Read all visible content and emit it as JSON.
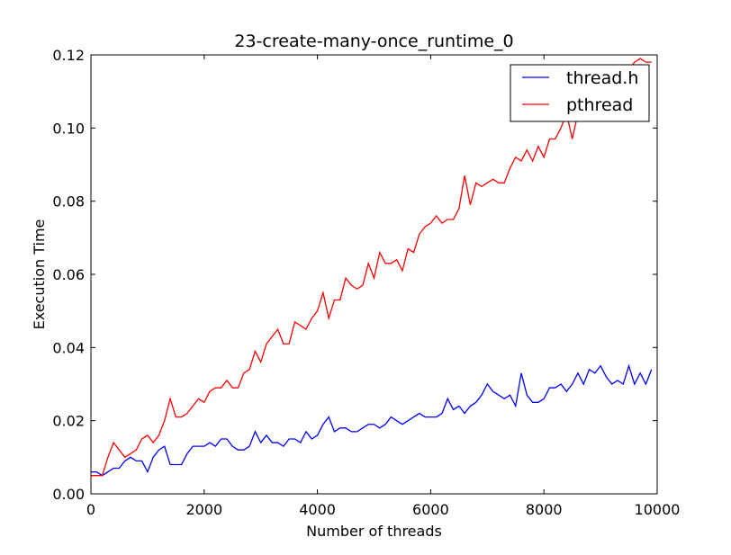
{
  "chart_data": {
    "type": "line",
    "title": "23-create-many-once_runtime_0",
    "xlabel": "Number of threads",
    "ylabel": "Execution Time",
    "xlim": [
      0,
      10000
    ],
    "ylim": [
      0,
      0.12
    ],
    "xticks": [
      0,
      2000,
      4000,
      6000,
      8000,
      10000
    ],
    "xtick_labels": [
      "0",
      "2000",
      "4000",
      "6000",
      "8000",
      "10000"
    ],
    "yticks": [
      0,
      0.02,
      0.04,
      0.06,
      0.08,
      0.1,
      0.12
    ],
    "ytick_labels": [
      "0.00",
      "0.02",
      "0.04",
      "0.06",
      "0.08",
      "0.10",
      "0.12"
    ],
    "grid": false,
    "legend_position": "top-right",
    "x": [
      0,
      100,
      200,
      300,
      400,
      500,
      600,
      700,
      800,
      900,
      1000,
      1100,
      1200,
      1300,
      1400,
      1500,
      1600,
      1700,
      1800,
      1900,
      2000,
      2100,
      2200,
      2300,
      2400,
      2500,
      2600,
      2700,
      2800,
      2900,
      3000,
      3100,
      3200,
      3300,
      3400,
      3500,
      3600,
      3700,
      3800,
      3900,
      4000,
      4100,
      4200,
      4300,
      4400,
      4500,
      4600,
      4700,
      4800,
      4900,
      5000,
      5100,
      5200,
      5300,
      5400,
      5500,
      5600,
      5700,
      5800,
      5900,
      6000,
      6100,
      6200,
      6300,
      6400,
      6500,
      6600,
      6700,
      6800,
      6900,
      7000,
      7100,
      7200,
      7300,
      7400,
      7500,
      7600,
      7700,
      7800,
      7900,
      8000,
      8100,
      8200,
      8300,
      8400,
      8500,
      8600,
      8700,
      8800,
      8900,
      9000,
      9100,
      9200,
      9300,
      9400,
      9500,
      9600,
      9700,
      9800,
      9900
    ],
    "series": [
      {
        "name": "thread.h",
        "color": "#0000ff",
        "values": [
          0.006,
          0.006,
          0.005,
          0.006,
          0.007,
          0.007,
          0.009,
          0.01,
          0.009,
          0.009,
          0.006,
          0.01,
          0.012,
          0.013,
          0.008,
          0.008,
          0.008,
          0.011,
          0.013,
          0.013,
          0.013,
          0.014,
          0.013,
          0.015,
          0.015,
          0.013,
          0.012,
          0.012,
          0.013,
          0.017,
          0.014,
          0.016,
          0.014,
          0.014,
          0.013,
          0.015,
          0.015,
          0.014,
          0.017,
          0.015,
          0.016,
          0.019,
          0.021,
          0.017,
          0.018,
          0.018,
          0.017,
          0.017,
          0.018,
          0.019,
          0.019,
          0.018,
          0.019,
          0.021,
          0.02,
          0.019,
          0.02,
          0.021,
          0.022,
          0.021,
          0.021,
          0.021,
          0.022,
          0.026,
          0.023,
          0.024,
          0.022,
          0.024,
          0.025,
          0.027,
          0.03,
          0.028,
          0.027,
          0.026,
          0.027,
          0.024,
          0.033,
          0.027,
          0.025,
          0.025,
          0.026,
          0.029,
          0.029,
          0.03,
          0.028,
          0.03,
          0.033,
          0.03,
          0.034,
          0.033,
          0.035,
          0.032,
          0.03,
          0.031,
          0.03,
          0.035,
          0.03,
          0.033,
          0.03,
          0.034
        ]
      },
      {
        "name": "pthread",
        "color": "#ff0000",
        "values": [
          0.005,
          0.005,
          0.005,
          0.01,
          0.014,
          0.012,
          0.01,
          0.011,
          0.012,
          0.015,
          0.016,
          0.014,
          0.016,
          0.02,
          0.026,
          0.021,
          0.021,
          0.022,
          0.024,
          0.026,
          0.025,
          0.028,
          0.029,
          0.029,
          0.031,
          0.029,
          0.029,
          0.033,
          0.034,
          0.039,
          0.036,
          0.041,
          0.043,
          0.045,
          0.041,
          0.041,
          0.047,
          0.046,
          0.045,
          0.048,
          0.05,
          0.055,
          0.048,
          0.053,
          0.053,
          0.059,
          0.057,
          0.056,
          0.057,
          0.063,
          0.059,
          0.066,
          0.063,
          0.063,
          0.064,
          0.061,
          0.067,
          0.066,
          0.071,
          0.073,
          0.074,
          0.076,
          0.074,
          0.075,
          0.075,
          0.078,
          0.087,
          0.079,
          0.085,
          0.084,
          0.085,
          0.086,
          0.085,
          0.085,
          0.089,
          0.092,
          0.091,
          0.094,
          0.091,
          0.095,
          0.092,
          0.097,
          0.097,
          0.1,
          0.104,
          0.097,
          0.104,
          0.104,
          0.107,
          0.109,
          0.111,
          0.111,
          0.112,
          0.115,
          0.116,
          0.116,
          0.118,
          0.119,
          0.118,
          0.118
        ]
      }
    ]
  }
}
